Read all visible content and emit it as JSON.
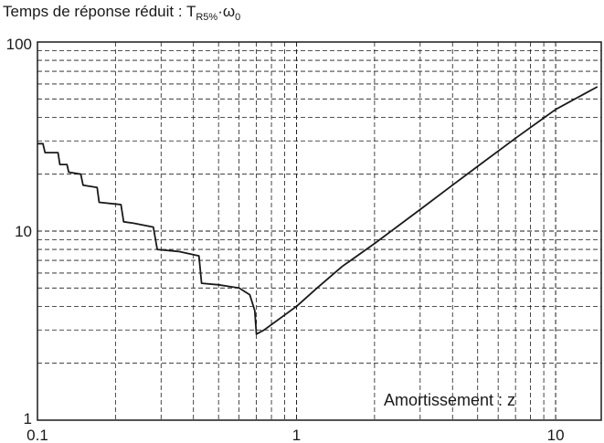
{
  "chart_data": {
    "type": "line",
    "title": {
      "main": "Temps de réponse réduit : T",
      "subscript": "R5%",
      "dot": "·",
      "omega": "ω",
      "omega_subscript": "0"
    },
    "xlabel": "Amortissement : z",
    "ylabel": "",
    "x_scale": "log",
    "y_scale": "log",
    "xlim": [
      0.1,
      15
    ],
    "ylim": [
      1,
      100
    ],
    "grid": true,
    "grid_style": "dashed",
    "x_tick_labels": [
      {
        "value": 0.1,
        "label": "0.1"
      },
      {
        "value": 1,
        "label": "1"
      },
      {
        "value": 10,
        "label": "10"
      }
    ],
    "y_tick_labels": [
      {
        "value": 1,
        "label": "1"
      },
      {
        "value": 10,
        "label": "10"
      },
      {
        "value": 100,
        "label": "100"
      }
    ],
    "series": [
      {
        "color": "#1a1a1a",
        "points": [
          [
            0.1,
            29.0
          ],
          [
            0.105,
            29.0
          ],
          [
            0.107,
            26.0
          ],
          [
            0.12,
            26.0
          ],
          [
            0.122,
            22.5
          ],
          [
            0.13,
            22.5
          ],
          [
            0.132,
            20.5
          ],
          [
            0.147,
            20.0
          ],
          [
            0.15,
            17.5
          ],
          [
            0.17,
            17.0
          ],
          [
            0.173,
            14.2
          ],
          [
            0.21,
            13.8
          ],
          [
            0.215,
            11.2
          ],
          [
            0.235,
            11.0
          ],
          [
            0.28,
            10.5
          ],
          [
            0.29,
            8.0
          ],
          [
            0.35,
            7.8
          ],
          [
            0.42,
            7.4
          ],
          [
            0.43,
            5.3
          ],
          [
            0.5,
            5.2
          ],
          [
            0.6,
            5.0
          ],
          [
            0.66,
            4.6
          ],
          [
            0.69,
            3.8
          ],
          [
            0.7,
            2.85
          ],
          [
            0.75,
            3.0
          ],
          [
            0.8,
            3.2
          ],
          [
            0.9,
            3.6
          ],
          [
            1.0,
            4.0
          ],
          [
            1.2,
            5.0
          ],
          [
            1.5,
            6.5
          ],
          [
            2.0,
            8.6
          ],
          [
            3.0,
            13.0
          ],
          [
            4.0,
            17.5
          ],
          [
            5.0,
            22.0
          ],
          [
            7.0,
            31.0
          ],
          [
            10.0,
            44.0
          ],
          [
            14.5,
            58.0
          ]
        ]
      }
    ]
  },
  "colors": {
    "ink": "#1a1a1a",
    "background": "#ffffff"
  }
}
